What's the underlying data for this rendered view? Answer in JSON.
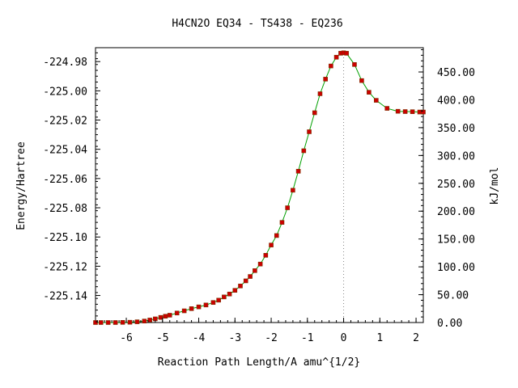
{
  "chart_data": {
    "type": "line",
    "title": "H4CN2O   EQ34 - TS438 - EQ236",
    "xlabel": "Reaction Path Length/A amu^{1/2}",
    "ylabel": "Energy/Hartree",
    "y2label": "kJ/mol",
    "xlim": [
      -6.85,
      2.2
    ],
    "ylim": [
      -225.1585,
      -224.9705
    ],
    "y2lim": [
      0.0,
      493.6
    ],
    "xticks": [
      "-6",
      "-5",
      "-4",
      "-3",
      "-2",
      "-1",
      "0",
      "1",
      "2"
    ],
    "yticks": [
      "-224.98",
      "-225.00",
      "-225.02",
      "-225.04",
      "-225.06",
      "-225.08",
      "-225.10",
      "-225.12",
      "-225.14"
    ],
    "y2ticks": [
      "0.00",
      "50.00",
      "100.00",
      "150.00",
      "200.00",
      "250.00",
      "300.00",
      "350.00",
      "400.00",
      "450.00"
    ],
    "ts_x": 0.0,
    "colors": {
      "line": "#00a000",
      "marker": "#cc0000",
      "ts_line": "#888888"
    },
    "grid": false,
    "series": [
      {
        "x": [
          -6.85,
          -6.7,
          -6.5,
          -6.3,
          -6.1,
          -5.9,
          -5.7,
          -5.5,
          -5.35,
          -5.2,
          -5.05,
          -4.92,
          -4.8,
          -4.6,
          -4.4,
          -4.2,
          -4.0,
          -3.8,
          -3.6,
          -3.45,
          -3.3,
          -3.15,
          -3.0,
          -2.85,
          -2.7,
          -2.58,
          -2.45,
          -2.3,
          -2.15,
          -2.0,
          -1.85,
          -1.7,
          -1.55,
          -1.4,
          -1.25,
          -1.1,
          -0.95,
          -0.8,
          -0.65,
          -0.5,
          -0.35,
          -0.2,
          -0.08,
          0.0,
          0.08,
          0.3,
          0.5,
          0.7,
          0.9,
          1.2,
          1.5,
          1.7,
          1.9,
          2.1,
          2.2
        ],
        "y": [
          -225.1585,
          -225.1585,
          -225.1585,
          -225.1585,
          -225.1584,
          -225.1583,
          -225.158,
          -225.1575,
          -225.1568,
          -225.156,
          -225.155,
          -225.1542,
          -225.1535,
          -225.152,
          -225.1505,
          -225.149,
          -225.1478,
          -225.1465,
          -225.1448,
          -225.1432,
          -225.141,
          -225.139,
          -225.1365,
          -225.1335,
          -225.13,
          -225.127,
          -225.123,
          -225.1185,
          -225.1125,
          -225.1055,
          -225.099,
          -225.09,
          -225.08,
          -225.068,
          -225.055,
          -225.041,
          -225.028,
          -225.015,
          -225.002,
          -224.992,
          -224.983,
          -224.977,
          -224.9743,
          -224.974,
          -224.9743,
          -224.982,
          -224.993,
          -225.001,
          -225.0065,
          -225.012,
          -225.014,
          -225.0142,
          -225.0143,
          -225.0145,
          -225.0145
        ]
      }
    ]
  }
}
